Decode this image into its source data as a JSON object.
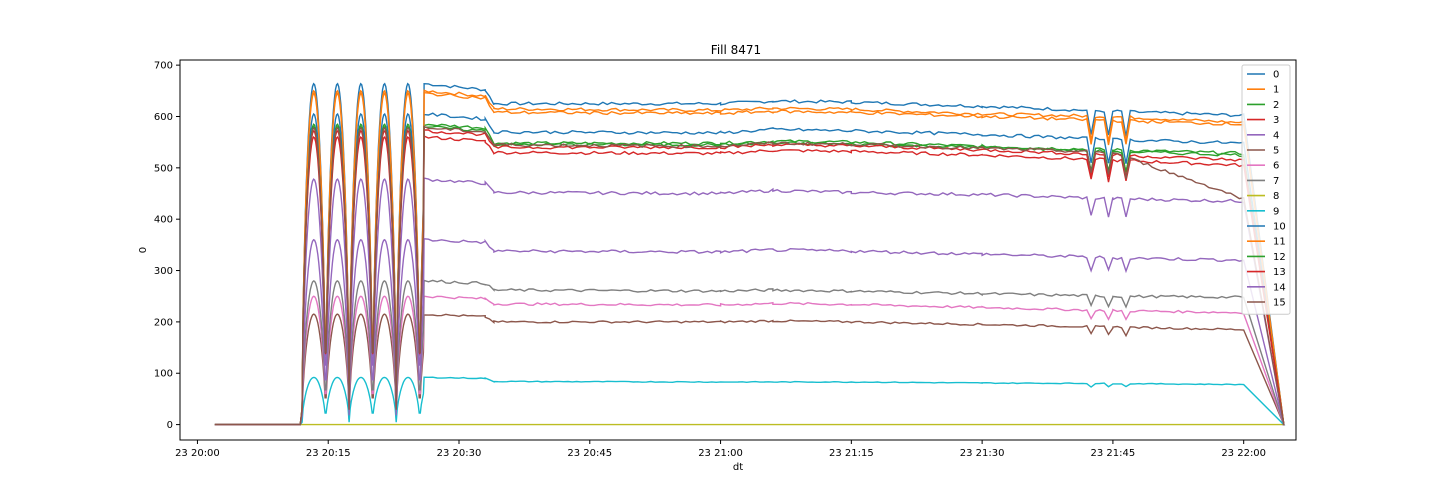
{
  "chart_data": {
    "type": "line",
    "title": "Fill 8471",
    "xlabel": "dt",
    "ylabel": "0",
    "xlim": [
      "2022-11-23 20:00",
      "2022-11-23 22:00"
    ],
    "ylim": [
      -30,
      710
    ],
    "x_ticks": [
      "23 20:00",
      "23 20:15",
      "23 20:30",
      "23 20:45",
      "23 21:00",
      "23 21:15",
      "23 21:30",
      "23 21:45",
      "23 22:00"
    ],
    "x_tick_minutes": [
      0,
      15,
      30,
      45,
      60,
      75,
      90,
      105,
      120
    ],
    "y_ticks": [
      0,
      100,
      200,
      300,
      400,
      500,
      600,
      700
    ],
    "grid": false,
    "legend_position": "upper right",
    "note_x_units": "minutes after 20:00 on day 23",
    "series": [
      {
        "name": "0",
        "color": "#1f77b4",
        "plateau": [
          664,
          652,
          625,
          625,
          630,
          628,
          620,
          610,
          602
        ]
      },
      {
        "name": "1",
        "color": "#ff7f0e",
        "plateau": [
          650,
          640,
          615,
          612,
          616,
          614,
          605,
          600,
          588
        ]
      },
      {
        "name": "2",
        "color": "#2ca02c",
        "plateau": [
          585,
          578,
          548,
          548,
          552,
          550,
          542,
          535,
          528
        ]
      },
      {
        "name": "3",
        "color": "#d62728",
        "plateau": [
          560,
          552,
          530,
          528,
          534,
          532,
          525,
          515,
          505
        ]
      },
      {
        "name": "4",
        "color": "#9467bd",
        "plateau": [
          478,
          470,
          452,
          450,
          456,
          452,
          448,
          440,
          435
        ]
      },
      {
        "name": "5",
        "color": "#8c564b",
        "plateau": [
          215,
          210,
          200,
          200,
          202,
          200,
          195,
          190,
          185
        ]
      },
      {
        "name": "6",
        "color": "#e377c2",
        "plateau": [
          250,
          245,
          235,
          233,
          236,
          234,
          228,
          222,
          218
        ]
      },
      {
        "name": "7",
        "color": "#7f7f7f",
        "plateau": [
          280,
          275,
          262,
          260,
          262,
          260,
          255,
          250,
          248
        ]
      },
      {
        "name": "8",
        "color": "#bcbd22",
        "plateau": [
          0,
          0,
          0,
          0,
          0,
          0,
          0,
          0,
          0
        ]
      },
      {
        "name": "9",
        "color": "#17becf",
        "plateau": [
          92,
          90,
          84,
          83,
          83,
          83,
          81,
          80,
          78
        ]
      },
      {
        "name": "10",
        "color": "#1f77b4",
        "plateau": [
          605,
          595,
          570,
          568,
          575,
          572,
          565,
          555,
          548
        ]
      },
      {
        "name": "11",
        "color": "#ff7f0e",
        "plateau": [
          645,
          636,
          608,
          606,
          610,
          608,
          600,
          592,
          585
        ]
      },
      {
        "name": "12",
        "color": "#2ca02c",
        "plateau": [
          580,
          572,
          545,
          545,
          548,
          546,
          540,
          532,
          525
        ]
      },
      {
        "name": "13",
        "color": "#d62728",
        "plateau": [
          572,
          565,
          540,
          540,
          545,
          543,
          535,
          525,
          515
        ]
      },
      {
        "name": "14",
        "color": "#9467bd",
        "plateau": [
          360,
          355,
          338,
          336,
          340,
          338,
          332,
          325,
          320
        ]
      },
      {
        "name": "15",
        "color": "#8c564b",
        "plateau": [
          578,
          570,
          545,
          542,
          548,
          546,
          538,
          530,
          440
        ]
      }
    ],
    "plateau_x_minutes": [
      26,
      33,
      34,
      60,
      66,
      75,
      90,
      105,
      120
    ],
    "series_start_minutes": 2,
    "series_ramp_start_minutes": 12,
    "series_end_minutes": 125
  }
}
